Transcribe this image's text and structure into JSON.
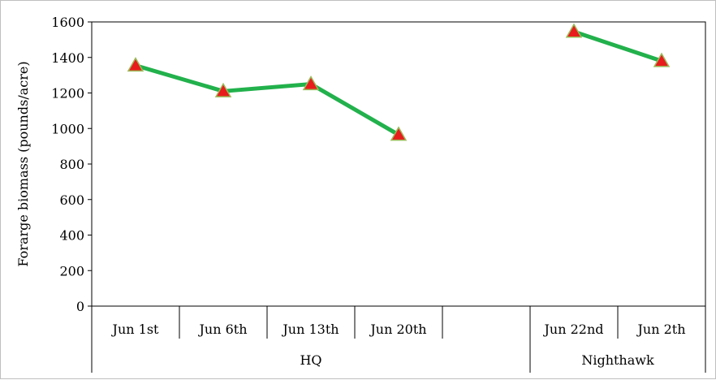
{
  "chart_data": {
    "type": "line",
    "ylabel": "Forarge biomass (pounds/acre)",
    "ylim": [
      0,
      1600
    ],
    "yticks": [
      0,
      200,
      400,
      600,
      800,
      1000,
      1200,
      1400,
      1600
    ],
    "grid": false,
    "legend": "none",
    "categories": [
      "Jun 1st",
      "Jun 6th",
      "Jun 13th",
      "Jun 20th",
      "",
      "Jun 22nd",
      "Jun 2th"
    ],
    "groups": [
      {
        "label": "HQ",
        "span": 5
      },
      {
        "label": "Nighthawk",
        "span": 2
      }
    ],
    "series": [
      {
        "values": [
          1355,
          1210,
          1250,
          965,
          null,
          1545,
          1380
        ]
      }
    ],
    "colors": {
      "line": "#22b14c",
      "marker_fill": "#e81c1c",
      "marker_edge": "#9bbb59",
      "axis": "#000000"
    }
  }
}
